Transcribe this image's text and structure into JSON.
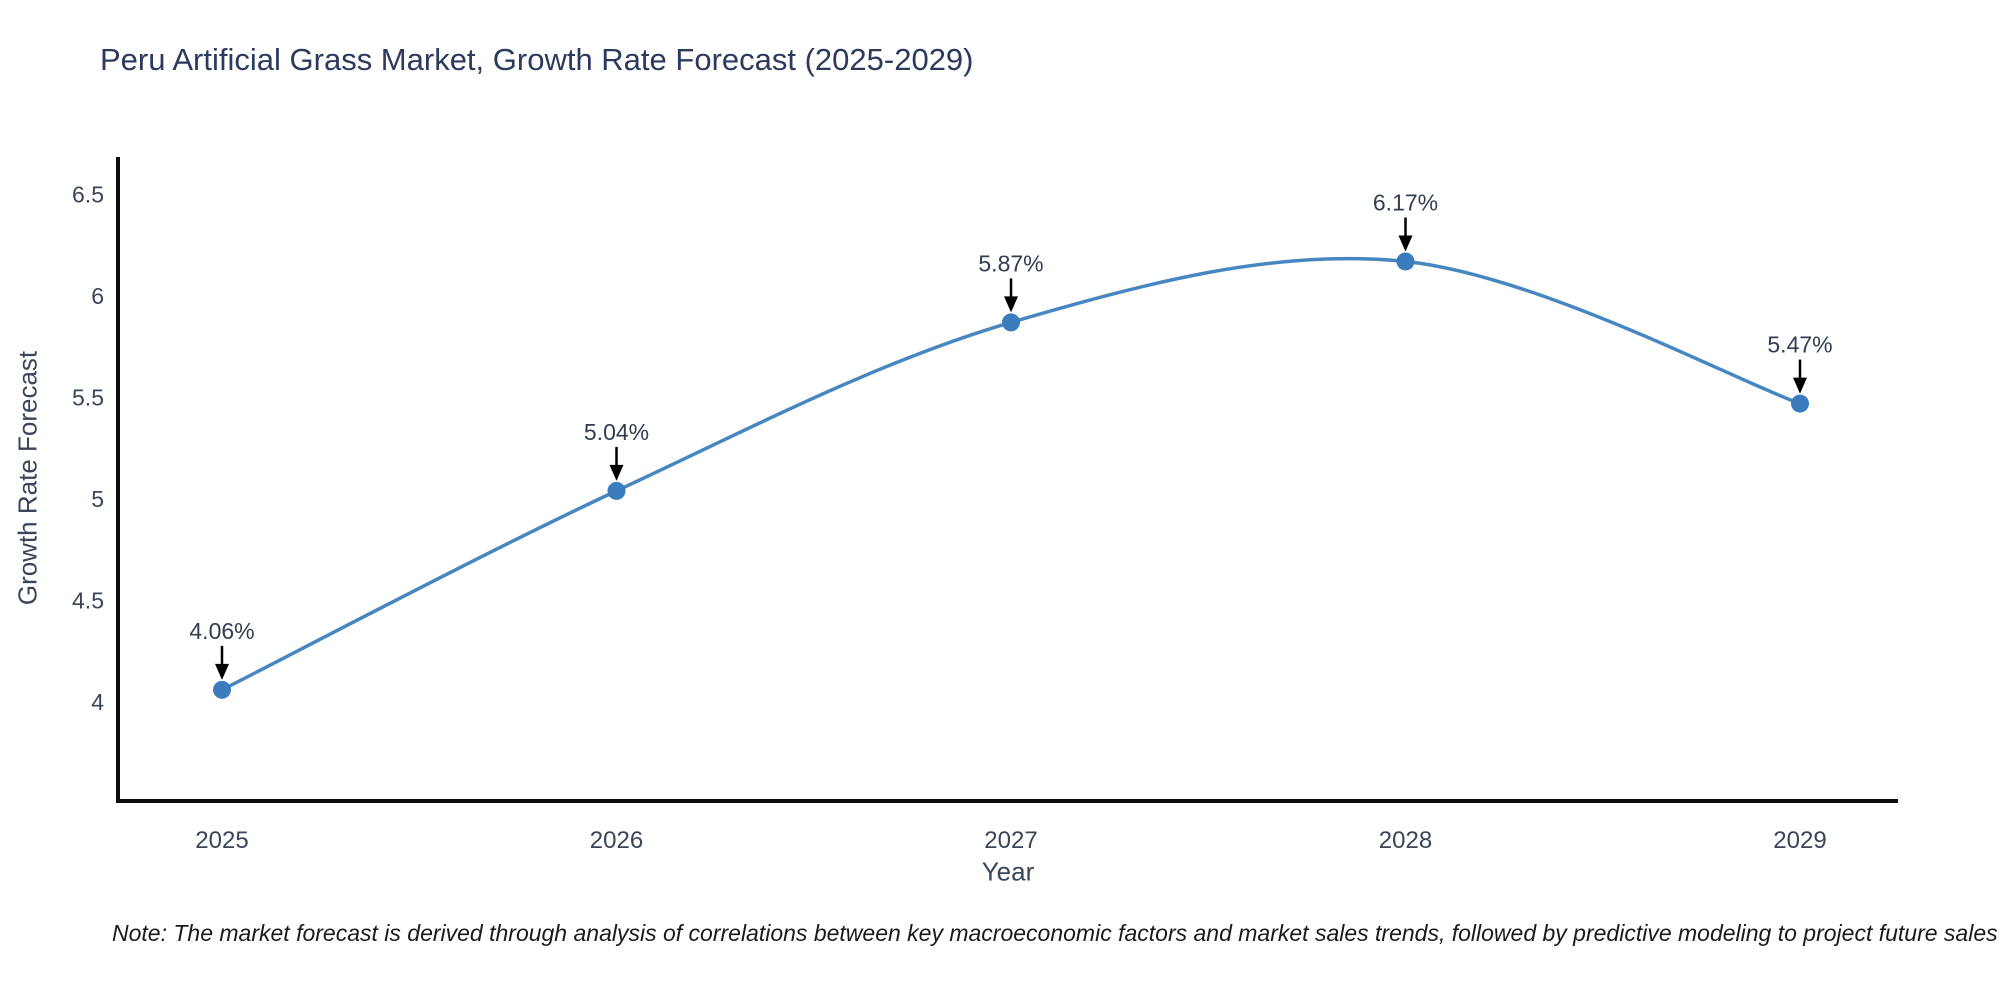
{
  "header": {
    "title": "Peru Artificial Grass Market, Growth Rate Forecast (2025-2029)"
  },
  "footnote": {
    "text": "Note: The market forecast is derived through analysis of correlations between key macroeconomic factors and market sales trends, followed by predictive modeling to project future sales"
  },
  "chart_data": {
    "type": "line",
    "title": "Peru Artificial Grass Market, Growth Rate Forecast (2025-2029)",
    "xlabel": "Year",
    "ylabel": "Growth Rate Forecast",
    "x": [
      2025,
      2026,
      2027,
      2028,
      2029
    ],
    "y": [
      4.06,
      5.04,
      5.87,
      6.17,
      5.47
    ],
    "point_labels": [
      "4.06%",
      "5.04%",
      "5.87%",
      "6.17%",
      "5.47%"
    ],
    "x_tick_labels": [
      "2025",
      "2026",
      "2027",
      "2028",
      "2029"
    ],
    "y_tick_values": [
      6.5,
      6,
      5.5,
      5,
      4.5,
      4
    ],
    "y_tick_labels": [
      "6.5",
      "6",
      "5.5",
      "5",
      "4.5",
      "4"
    ],
    "ylim": [
      3.51,
      6.69
    ],
    "smooth": true,
    "grid": false,
    "legend": false,
    "annotations_have_arrows": true,
    "colors": {
      "line": "#4787c1",
      "marker": "#3a7cbd",
      "axis": "#0d0d0d",
      "tick_text": "#3a4559",
      "annotation_text": "#323d52",
      "arrow": "#000000",
      "title": "#2c3a5e"
    }
  }
}
